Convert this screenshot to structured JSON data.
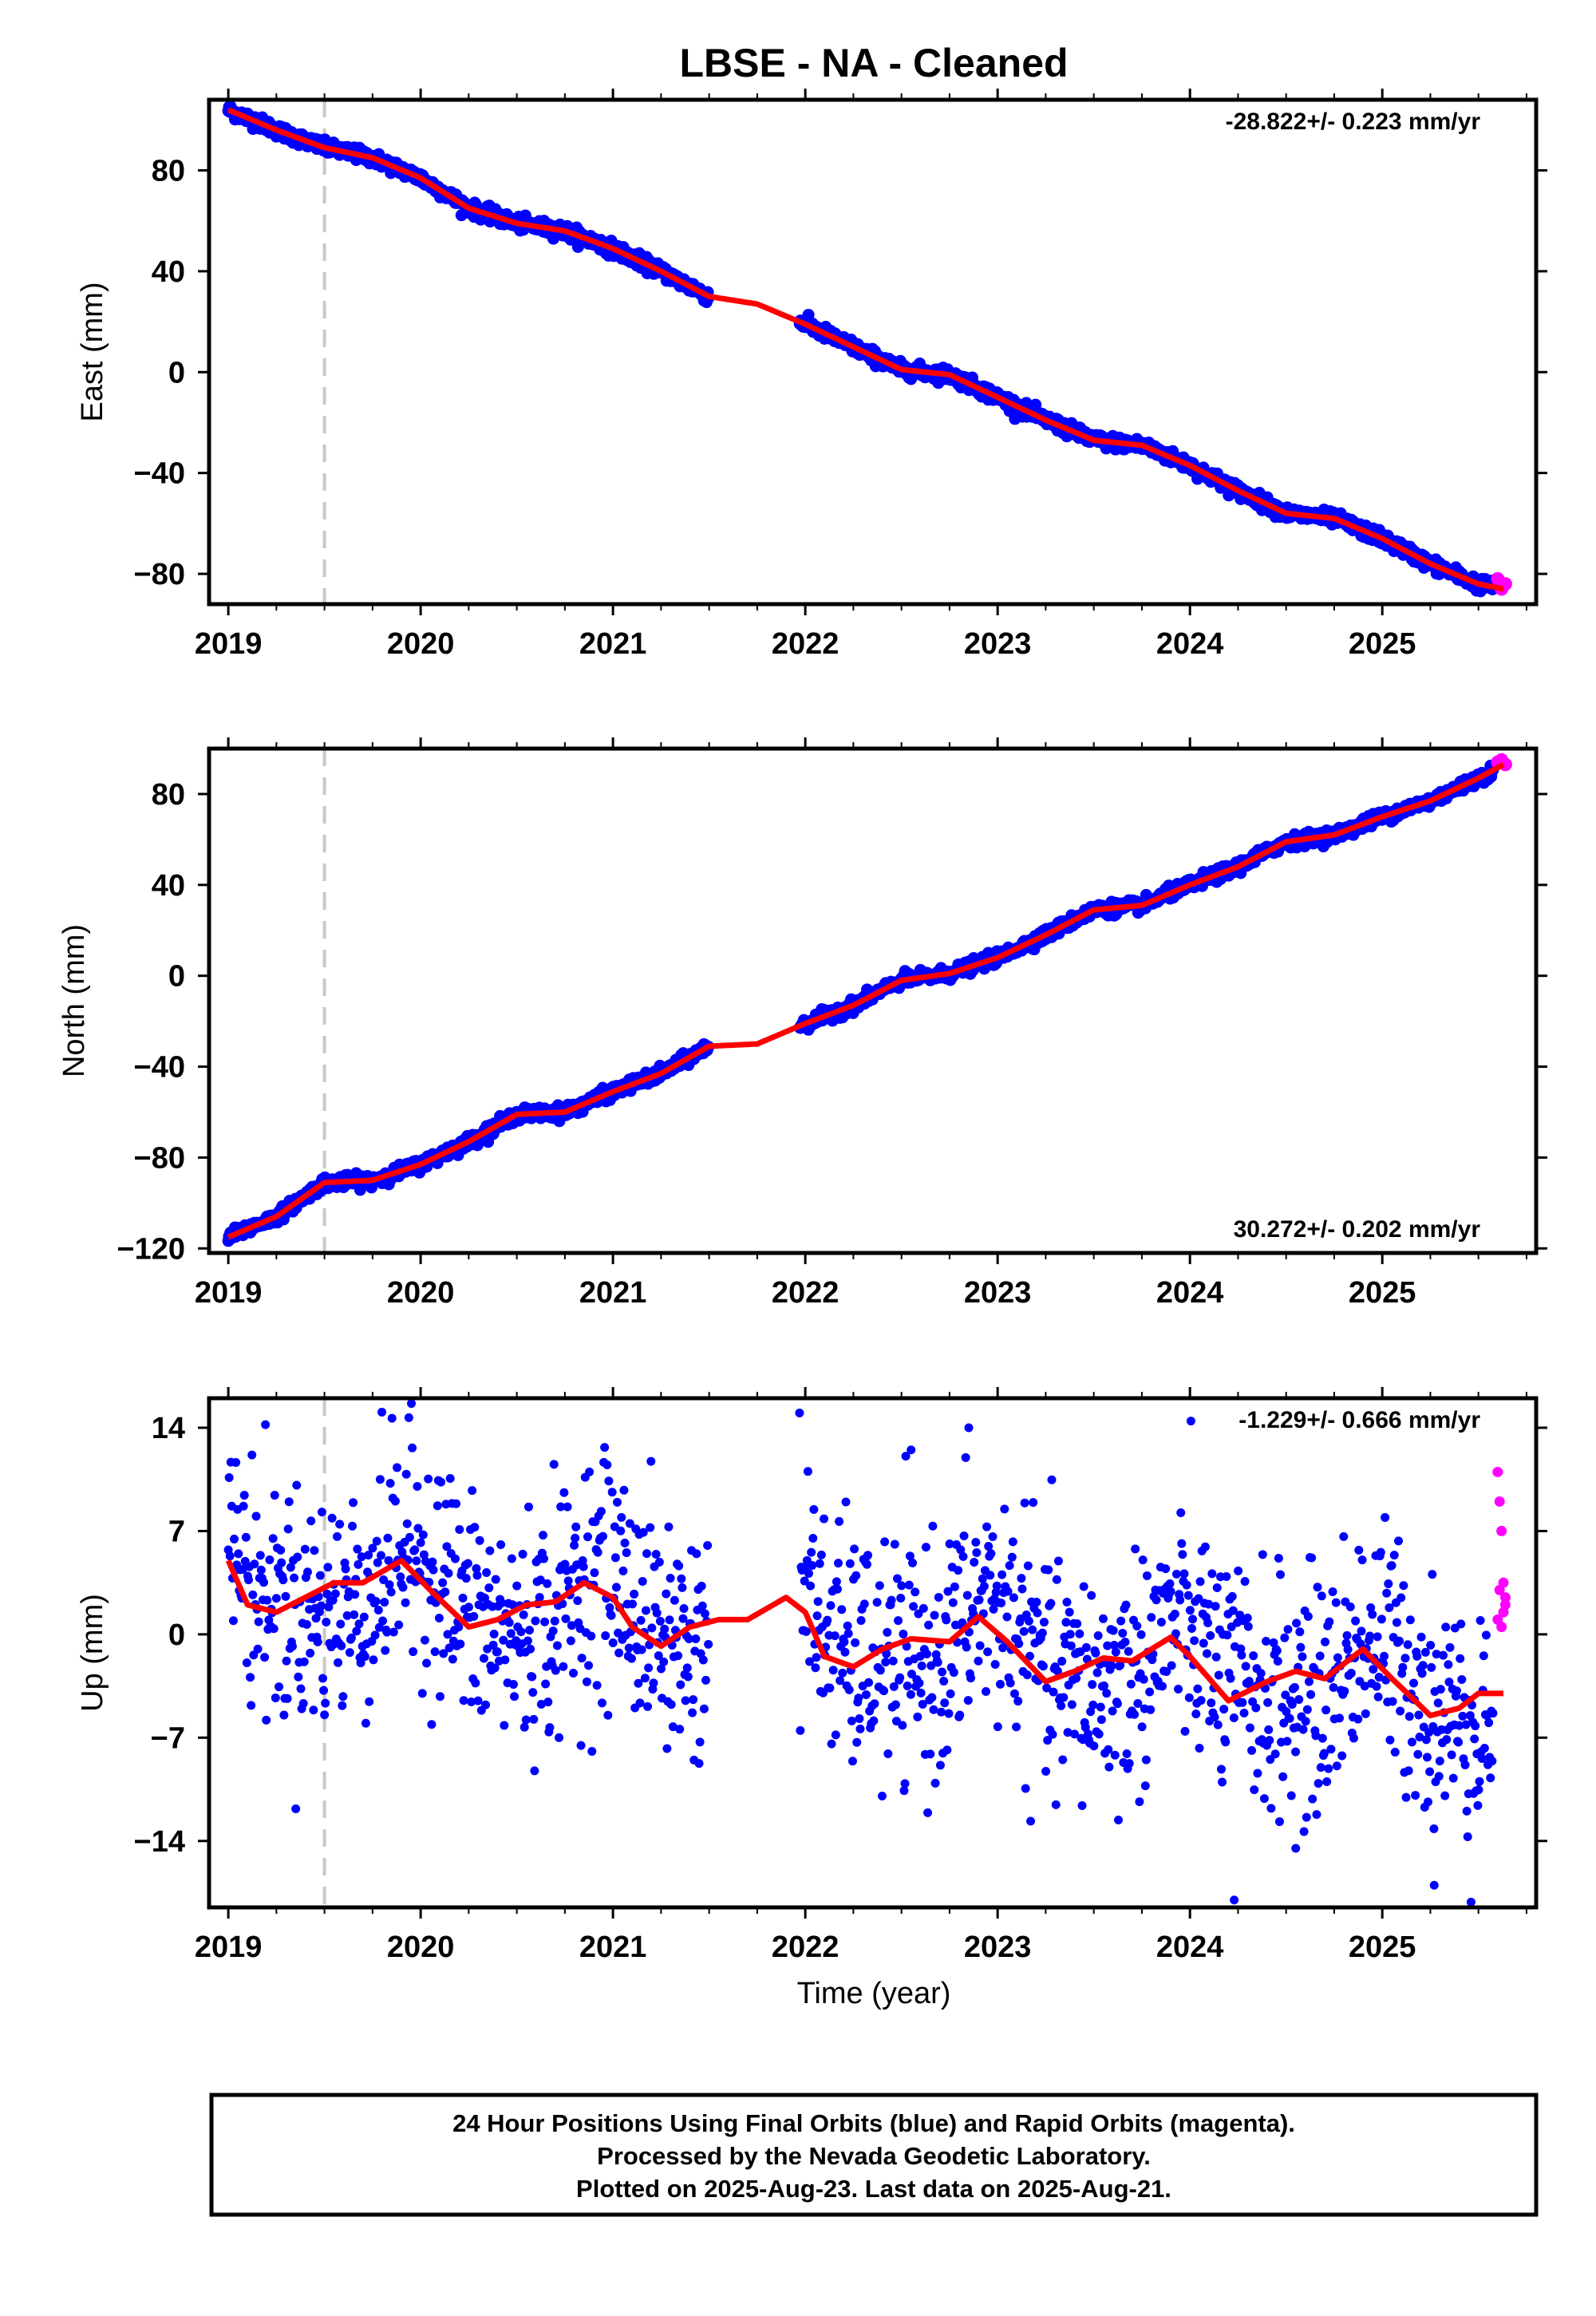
{
  "title": "LBSE  - NA - Cleaned",
  "xlabel": "Time (year)",
  "footer": [
    "24 Hour Positions Using Final Orbits (blue) and Rapid Orbits (magenta).",
    "Processed by the Nevada Geodetic Laboratory.",
    "Plotted on 2025-Aug-23. Last data on 2025-Aug-21."
  ],
  "colors": {
    "final": "#0000ff",
    "rapid": "#ff00ff",
    "model": "#ff0000",
    "marker_line": "#c8c8c8"
  },
  "chart_data": [
    {
      "type": "scatter",
      "ylabel": "East (mm)",
      "rate": "-28.822+/- 0.223 mm/yr",
      "rate_position": "top-right",
      "xlim": [
        2018.9,
        2025.8
      ],
      "ylim": [
        -92,
        108
      ],
      "xticks": [
        "2019",
        "2020",
        "2021",
        "2022",
        "2023",
        "2024",
        "2025"
      ],
      "yticks": [
        "80",
        "40",
        "0",
        "−40",
        "−80"
      ],
      "yticks_values": [
        80,
        40,
        0,
        -40,
        -80
      ],
      "equipment_change_x": 2019.5,
      "gaps": [
        [
          2021.5,
          2021.97
        ]
      ],
      "model": {
        "x": [
          2019.0,
          2019.25,
          2019.5,
          2019.75,
          2020.0,
          2020.25,
          2020.5,
          2020.75,
          2021.0,
          2021.25,
          2021.5,
          2021.75,
          2022.0,
          2022.25,
          2022.5,
          2022.75,
          2023.0,
          2023.25,
          2023.5,
          2023.75,
          2024.0,
          2024.25,
          2024.5,
          2024.75,
          2025.0,
          2025.25,
          2025.5,
          2025.63
        ],
        "y": [
          104,
          96,
          89,
          85,
          77,
          65,
          59,
          56,
          49,
          40,
          30,
          27,
          19,
          10,
          1,
          -1,
          -10,
          -19,
          -27,
          -29,
          -37,
          -47,
          -56,
          -58,
          -66,
          -76,
          -84,
          -86
        ]
      },
      "final_sample": {
        "x": [
          2019.0,
          2019.5,
          2020.0,
          2020.5,
          2021.0,
          2021.45,
          2022.0,
          2022.5,
          2023.0,
          2023.5,
          2024.0,
          2024.5,
          2025.0,
          2025.55
        ],
        "y": [
          104,
          89,
          77,
          59,
          49,
          31,
          19,
          1,
          -10,
          -27,
          -37,
          -56,
          -66,
          -84
        ]
      },
      "rapid": {
        "x": [
          2025.6,
          2025.62,
          2025.64
        ],
        "y": [
          -82,
          -86,
          -84
        ]
      },
      "scatter_mm": 2.2
    },
    {
      "type": "scatter",
      "ylabel": "North (mm)",
      "rate": "30.272+/- 0.202 mm/yr",
      "rate_position": "bottom-right",
      "xlim": [
        2018.9,
        2025.8
      ],
      "ylim": [
        -122,
        100
      ],
      "xticks": [
        "2019",
        "2020",
        "2021",
        "2022",
        "2023",
        "2024",
        "2025"
      ],
      "yticks": [
        "80",
        "40",
        "0",
        "−40",
        "−80",
        "−120"
      ],
      "yticks_values": [
        80,
        40,
        0,
        -40,
        -80,
        -120
      ],
      "equipment_change_x": 2019.5,
      "gaps": [
        [
          2021.5,
          2021.97
        ]
      ],
      "model": {
        "x": [
          2019.0,
          2019.25,
          2019.5,
          2019.75,
          2020.0,
          2020.25,
          2020.5,
          2020.75,
          2021.0,
          2021.25,
          2021.5,
          2021.75,
          2022.0,
          2022.25,
          2022.5,
          2022.75,
          2023.0,
          2023.25,
          2023.5,
          2023.75,
          2024.0,
          2024.25,
          2024.5,
          2024.75,
          2025.0,
          2025.25,
          2025.5,
          2025.63
        ],
        "y": [
          -115,
          -106,
          -91,
          -90,
          -83,
          -73,
          -61,
          -60,
          -51,
          -43,
          -31,
          -30,
          -21,
          -13,
          -2,
          1,
          8,
          18,
          29,
          31,
          40,
          48,
          59,
          62,
          70,
          77,
          87,
          93
        ]
      },
      "final_sample": {
        "x": [
          2019.0,
          2019.5,
          2020.0,
          2020.5,
          2021.0,
          2021.45,
          2022.0,
          2022.5,
          2023.0,
          2023.5,
          2024.0,
          2024.5,
          2025.0,
          2025.55
        ],
        "y": [
          -115,
          -91,
          -83,
          -61,
          -51,
          -32,
          -21,
          -2,
          8,
          29,
          40,
          59,
          70,
          88
        ]
      },
      "rapid": {
        "x": [
          2025.6,
          2025.62,
          2025.64
        ],
        "y": [
          94,
          95,
          93
        ]
      },
      "scatter_mm": 2.2
    },
    {
      "type": "scatter",
      "ylabel": "Up (mm)",
      "rate": "-1.229+/- 0.666 mm/yr",
      "rate_position": "top-right",
      "xlim": [
        2018.9,
        2025.8
      ],
      "ylim": [
        -18.5,
        16
      ],
      "xticks": [
        "2019",
        "2020",
        "2021",
        "2022",
        "2023",
        "2024",
        "2025"
      ],
      "yticks": [
        "14",
        "7",
        "0",
        "−7",
        "−14"
      ],
      "yticks_values": [
        14,
        7,
        0,
        -7,
        -14
      ],
      "equipment_change_x": 2019.5,
      "gaps": [
        [
          2021.5,
          2021.97
        ]
      ],
      "model": {
        "x": [
          2019.0,
          2019.1,
          2019.25,
          2019.4,
          2019.55,
          2019.7,
          2019.9,
          2020.05,
          2020.25,
          2020.4,
          2020.55,
          2020.7,
          2020.85,
          2021.0,
          2021.1,
          2021.25,
          2021.4,
          2021.55,
          2021.7,
          2021.9,
          2022.0,
          2022.1,
          2022.25,
          2022.4,
          2022.55,
          2022.75,
          2022.9,
          2023.05,
          2023.25,
          2023.4,
          2023.55,
          2023.7,
          2023.9,
          2024.0,
          2024.2,
          2024.4,
          2024.55,
          2024.7,
          2024.9,
          2025.05,
          2025.25,
          2025.4,
          2025.5,
          2025.63
        ],
        "y": [
          5,
          2,
          1.5,
          2.5,
          3.5,
          3.5,
          5,
          3,
          0.5,
          1,
          2,
          2.2,
          3.5,
          2.5,
          0.5,
          -0.8,
          0.5,
          1,
          1,
          2.5,
          1.5,
          -1.5,
          -2.2,
          -1,
          -0.3,
          -0.5,
          1.2,
          -0.5,
          -3.2,
          -2.5,
          -1.6,
          -1.8,
          -0.2,
          -1.5,
          -4.5,
          -3.2,
          -2.5,
          -3,
          -1,
          -3,
          -5.5,
          -5,
          -4,
          -4
        ]
      },
      "final_sample": {
        "x": [
          2019.0,
          2019.5,
          2020.0,
          2020.5,
          2021.0,
          2021.45,
          2022.0,
          2022.5,
          2023.0,
          2023.5,
          2024.0,
          2024.5,
          2025.0,
          2025.55
        ],
        "y": [
          12,
          4,
          7,
          -2,
          4,
          1,
          9,
          3,
          -1,
          -4,
          -6,
          -8,
          -3,
          -9
        ]
      },
      "rapid": {
        "x": [
          2025.6,
          2025.61,
          2025.62,
          2025.63,
          2025.64,
          2025.6,
          2025.61,
          2025.62,
          2025.63,
          2025.64
        ],
        "y": [
          11,
          9,
          7,
          3.5,
          2,
          1,
          3,
          0.5,
          1.5,
          2.5
        ]
      },
      "extreme_points": {
        "x": [
          2021.97,
          2024.23,
          2025.27,
          2022.85,
          2022.55,
          2024.55
        ],
        "y": [
          15,
          -18,
          -17,
          14,
          12.5,
          -14.5
        ]
      },
      "scatter_mm": 4.0
    }
  ]
}
